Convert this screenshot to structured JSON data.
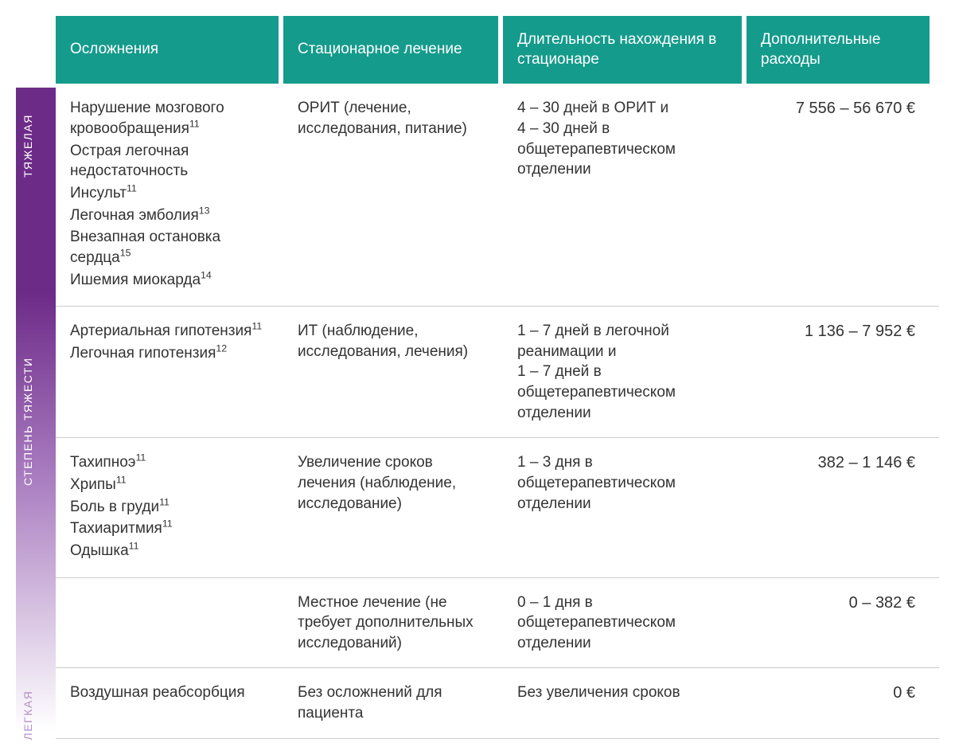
{
  "layout": {
    "header_bg": "#159b8c",
    "header_text": "#ffffff",
    "body_text": "#333333",
    "divider": "#cccccc",
    "font_size_header": 19,
    "font_size_body": 19,
    "font_size_cost": 20,
    "columns": {
      "col1_width": 280,
      "col2_width": 270,
      "col3_width": 300,
      "col4_width": 230
    }
  },
  "sidebar": {
    "gradient_top": "#6d2b88",
    "gradient_bottom": "#ffffff",
    "label_color": "#ffffff",
    "label_fontsize": 14,
    "labels": {
      "heavy": "ТЯЖЕЛАЯ",
      "severity": "СТЕПЕНЬ ТЯЖЕСТИ",
      "light": "ЛЕГКАЯ"
    }
  },
  "headers": {
    "c1": "Осложнения",
    "c2": "Стационарное лечение",
    "c3": "Длительность нахождения в стационаре",
    "c4": "Дополнительные расходы"
  },
  "rows": [
    {
      "complications": [
        {
          "t": "Нарушение мозгового кровообращения",
          "sup": "11"
        },
        {
          "t": "Острая легочная недостаточность",
          "sup": ""
        },
        {
          "t": "Инсульт",
          "sup": "11"
        },
        {
          "t": "Легочная эмболия",
          "sup": "13"
        },
        {
          "t": "Внезапная остановка сердца",
          "sup": "15"
        },
        {
          "t": "Ишемия миокарда",
          "sup": "14"
        }
      ],
      "treatment": "ОРИТ (лечение, исследования, питание)",
      "duration": "4 – 30 дней в ОРИТ и\n4 – 30 дней в общетерапевтическом отделении",
      "cost": "7 556 – 56 670 €"
    },
    {
      "complications": [
        {
          "t": "Артериальная гипотензия",
          "sup": "11"
        },
        {
          "t": "Легочная гипотензия",
          "sup": "12"
        }
      ],
      "treatment": "ИТ (наблюдение, исследования, лечения)",
      "duration": "1 – 7 дней в легочной реанимации и\n1 – 7 дней в общетерапевтическом отделении",
      "cost": "1 136 – 7 952 €"
    },
    {
      "complications": [
        {
          "t": "Тахипноэ",
          "sup": "11"
        },
        {
          "t": "Хрипы",
          "sup": "11"
        },
        {
          "t": "Боль в груди",
          "sup": "11"
        },
        {
          "t": "Тахиаритмия",
          "sup": "11"
        },
        {
          "t": "Одышка",
          "sup": "11"
        }
      ],
      "treatment": "Увеличение сроков лечения (наблюдение, исследование)",
      "duration": "1 – 3 дня в общетерапевтическом отделении",
      "cost": "382 – 1 146 €"
    },
    {
      "complications": [],
      "treatment": "Местное лечение (не требует дополнительных исследований)",
      "duration": "0 – 1 дня в общетерапевтическом отделении",
      "cost": "0 – 382 €"
    },
    {
      "complications": [
        {
          "t": "Воздушная реабсорбция",
          "sup": ""
        }
      ],
      "treatment": "Без осложнений для пациента",
      "duration": "Без увеличения сроков",
      "cost": "0 €"
    }
  ]
}
